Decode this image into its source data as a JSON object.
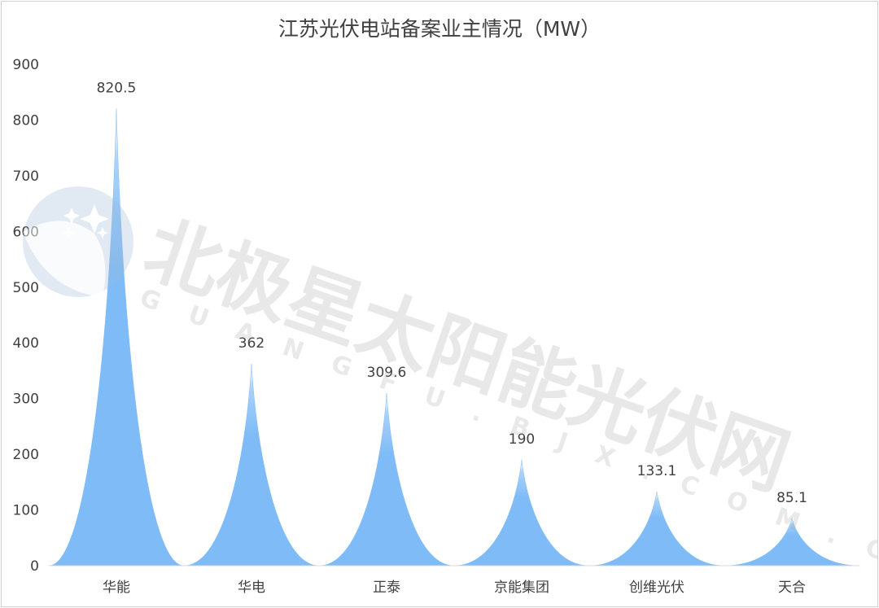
{
  "chart_data": {
    "type": "area",
    "title": "江苏光伏电站备案业主情况（MW）",
    "categories": [
      "华能",
      "华电",
      "正泰",
      "京能集团",
      "创维光伏",
      "天合"
    ],
    "values": [
      820.5,
      362,
      309.6,
      190,
      133.1,
      85.1
    ],
    "data_labels": [
      "820.5",
      "362",
      "309.6",
      "190",
      "133.1",
      "85.1"
    ],
    "ylim": [
      0,
      900
    ],
    "yticks": [
      "0",
      "100",
      "200",
      "300",
      "400",
      "500",
      "600",
      "700",
      "800",
      "900"
    ],
    "xlabel": "",
    "ylabel": "",
    "grid": false,
    "legend": "none",
    "series_color": "#7fbcf7"
  },
  "watermark": {
    "text_cn": "北极星太阳能光伏网",
    "text_en": "GUANGFU.BJX.COM.CN",
    "logo": "polaris-star-logo-icon",
    "color": "#9a9a9a"
  }
}
